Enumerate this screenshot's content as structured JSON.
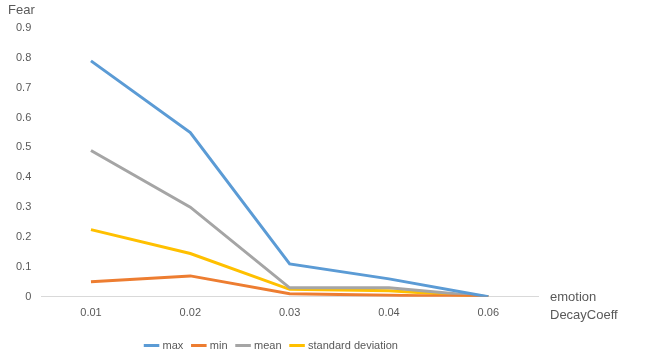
{
  "chart_data": {
    "type": "line",
    "y_label": "Fear",
    "x_label": "emotion DecayCoeff",
    "categories": [
      "0.01",
      "0.02",
      "0.03",
      "0.04",
      "0.06"
    ],
    "series": [
      {
        "name": "max",
        "color": "#5b9bd5",
        "values": [
          0.79,
          0.55,
          0.11,
          0.06,
          0.0
        ]
      },
      {
        "name": "min",
        "color": "#ed7d31",
        "values": [
          0.05,
          0.07,
          0.01,
          0.005,
          0.0
        ]
      },
      {
        "name": "mean",
        "color": "#a5a5a5",
        "values": [
          0.49,
          0.3,
          0.03,
          0.03,
          0.0
        ]
      },
      {
        "name": "standard deviation",
        "color": "#ffc000",
        "values": [
          0.225,
          0.145,
          0.025,
          0.02,
          0.0
        ]
      }
    ],
    "ylim": [
      0,
      0.9
    ],
    "yticks": [
      0,
      0.1,
      0.2,
      0.3,
      0.4,
      0.5,
      0.6,
      0.7,
      0.8,
      0.9
    ],
    "grid": false,
    "legend": "bottom"
  }
}
